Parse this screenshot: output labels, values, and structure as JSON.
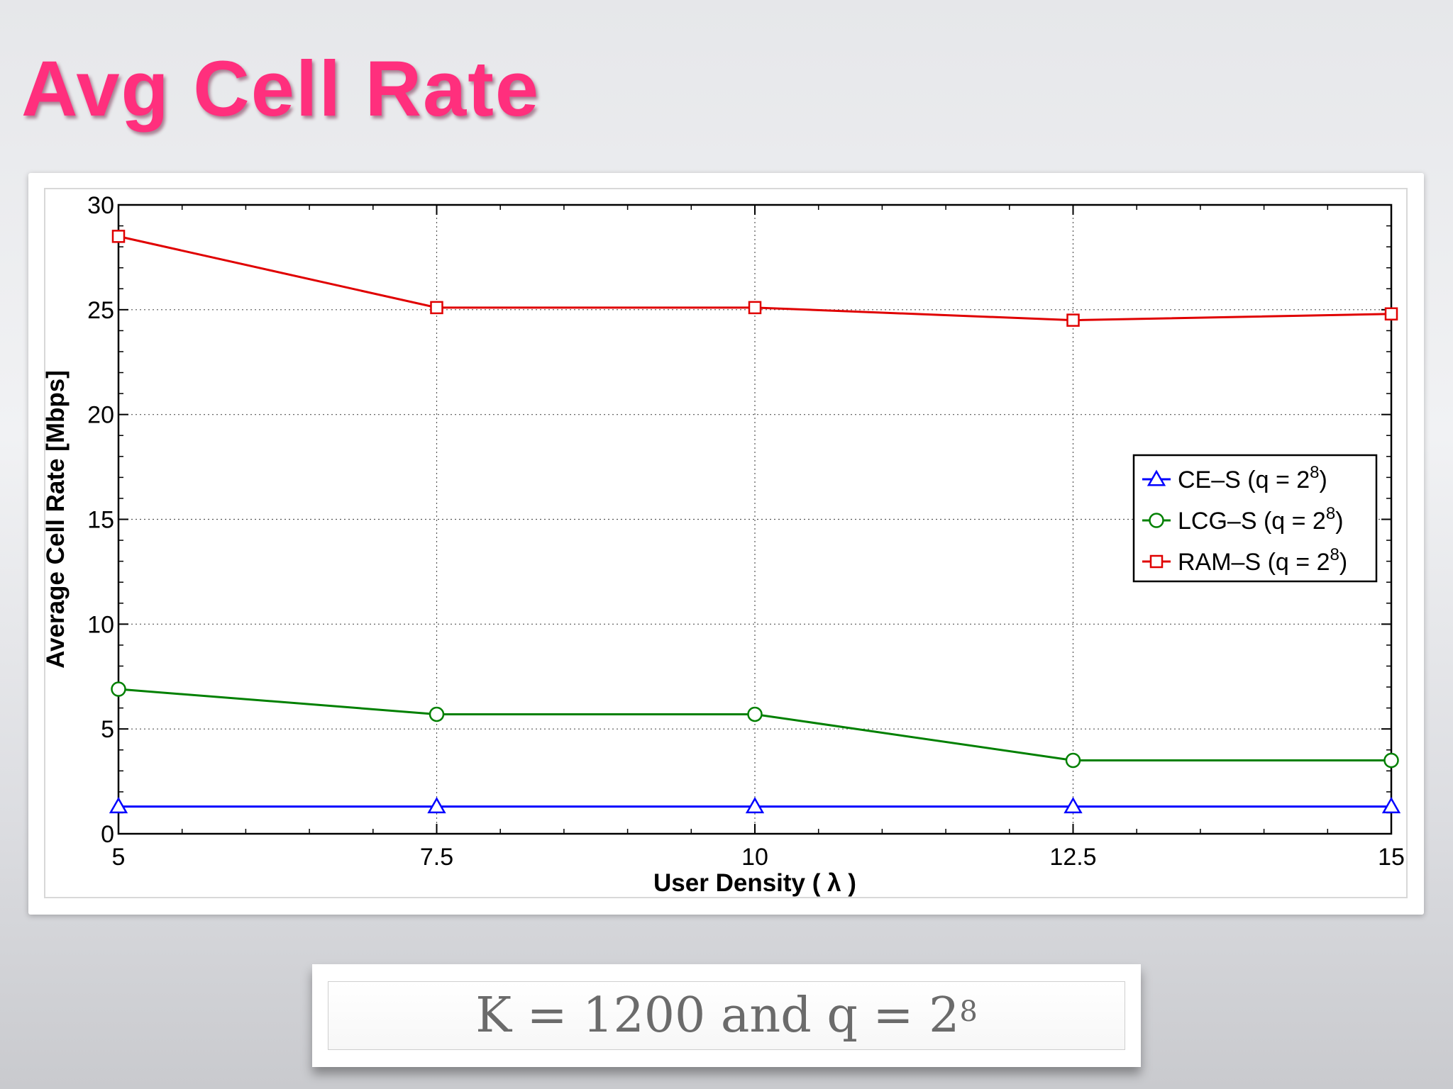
{
  "slide": {
    "title": "Avg Cell Rate",
    "note": {
      "text": "K = 1200 and q = 2",
      "exponent": "8"
    }
  },
  "colors": {
    "title": "#ff2f7d",
    "ce": "#0000ff",
    "lcg": "#008000",
    "ram": "#e00000"
  },
  "chart_data": {
    "type": "line",
    "title": "",
    "xlabel": "User Density ( λ )",
    "ylabel": "Average Cell Rate [Mbps]",
    "xlim": [
      5,
      15
    ],
    "ylim": [
      0,
      30
    ],
    "xticks": [
      "5",
      "7.5",
      "10",
      "12.5",
      "15"
    ],
    "yticks": [
      "0",
      "5",
      "10",
      "15",
      "20",
      "25",
      "30"
    ],
    "grid": true,
    "legend_position": "right",
    "x": [
      5,
      7.5,
      10,
      12.5,
      15
    ],
    "series": [
      {
        "name": "CE–S (q = 2",
        "exp": "8",
        "close": ")",
        "marker": "triangle",
        "color": "#0000ff",
        "values": [
          1.3,
          1.3,
          1.3,
          1.3,
          1.3
        ]
      },
      {
        "name": "LCG–S (q = 2",
        "exp": "8",
        "close": ")",
        "marker": "circle",
        "color": "#008000",
        "values": [
          6.9,
          5.7,
          5.7,
          3.5,
          3.5
        ]
      },
      {
        "name": "RAM–S (q = 2",
        "exp": "8",
        "close": ")",
        "marker": "square",
        "color": "#e00000",
        "values": [
          28.5,
          25.1,
          25.1,
          24.5,
          24.8
        ]
      }
    ]
  }
}
